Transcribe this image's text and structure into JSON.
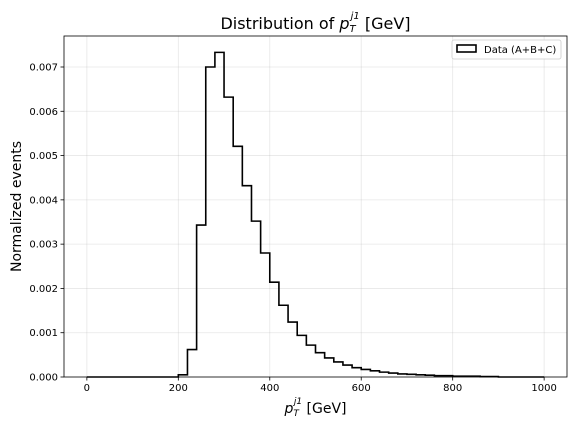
{
  "chart_data": {
    "type": "histogram",
    "title": {
      "prefix": "Distribution of ",
      "symbol": "p",
      "sub": "T",
      "sup": "j1",
      "suffix": " [GeV]"
    },
    "xlabel": {
      "symbol": "p",
      "sub": "T",
      "sup": "j1",
      "suffix": " [GeV]"
    },
    "ylabel": "Normalized events",
    "xlim": [
      -50,
      1050
    ],
    "ylim": [
      0,
      0.0077
    ],
    "xticks": [
      0,
      200,
      400,
      600,
      800,
      1000
    ],
    "xtick_labels": [
      "0",
      "200",
      "400",
      "600",
      "800",
      "1000"
    ],
    "yticks": [
      0,
      0.001,
      0.002,
      0.003,
      0.004,
      0.005,
      0.006,
      0.007
    ],
    "ytick_labels": [
      "0.000",
      "0.001",
      "0.002",
      "0.003",
      "0.004",
      "0.005",
      "0.006",
      "0.007"
    ],
    "grid": true,
    "legend_position": "top-right",
    "series": [
      {
        "name": "Data (A+B+C)",
        "color": "#000000",
        "bin_start": 0,
        "bin_width": 20,
        "values": [
          0,
          0,
          0,
          0,
          0,
          0,
          0,
          0,
          0,
          0,
          5e-05,
          0.00062,
          0.00343,
          0.007,
          0.00733,
          0.00632,
          0.00521,
          0.00432,
          0.00352,
          0.0028,
          0.00214,
          0.00162,
          0.00124,
          0.00094,
          0.00072,
          0.00055,
          0.00043,
          0.00034,
          0.00027,
          0.00021,
          0.00017,
          0.00014,
          0.00011,
          9e-05,
          7e-05,
          6e-05,
          5e-05,
          4e-05,
          3e-05,
          3e-05,
          2e-05,
          2e-05,
          2e-05,
          1e-05,
          1e-05,
          0,
          0,
          0,
          0,
          0
        ]
      }
    ]
  }
}
